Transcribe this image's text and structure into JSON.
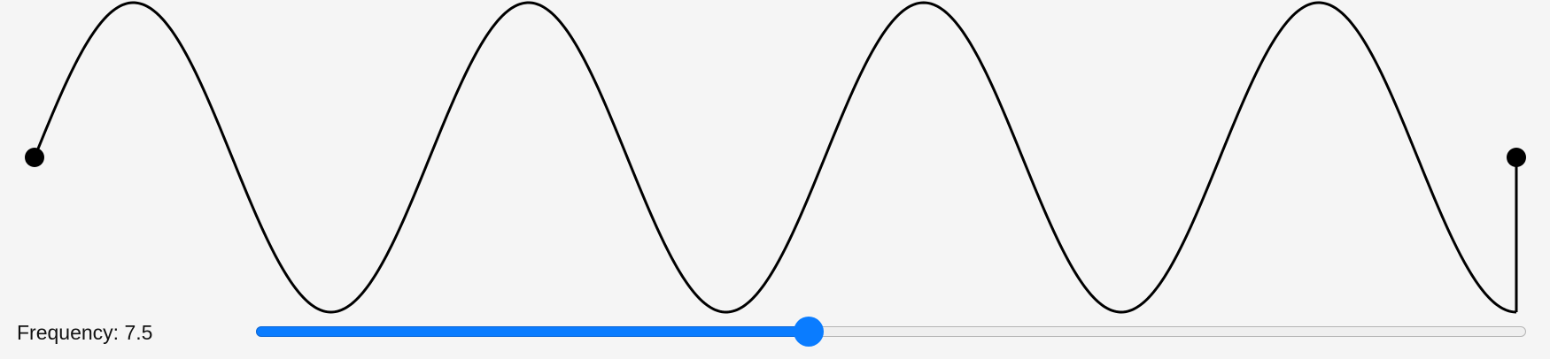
{
  "frequency": {
    "label": "Frequency: 7.5",
    "value": 7.5,
    "fraction": 0.435
  },
  "wave": {
    "cycles": 3.75
  },
  "colors": {
    "accent": "#0a7cff",
    "wave": "#000000",
    "background": "#f5f5f5"
  }
}
